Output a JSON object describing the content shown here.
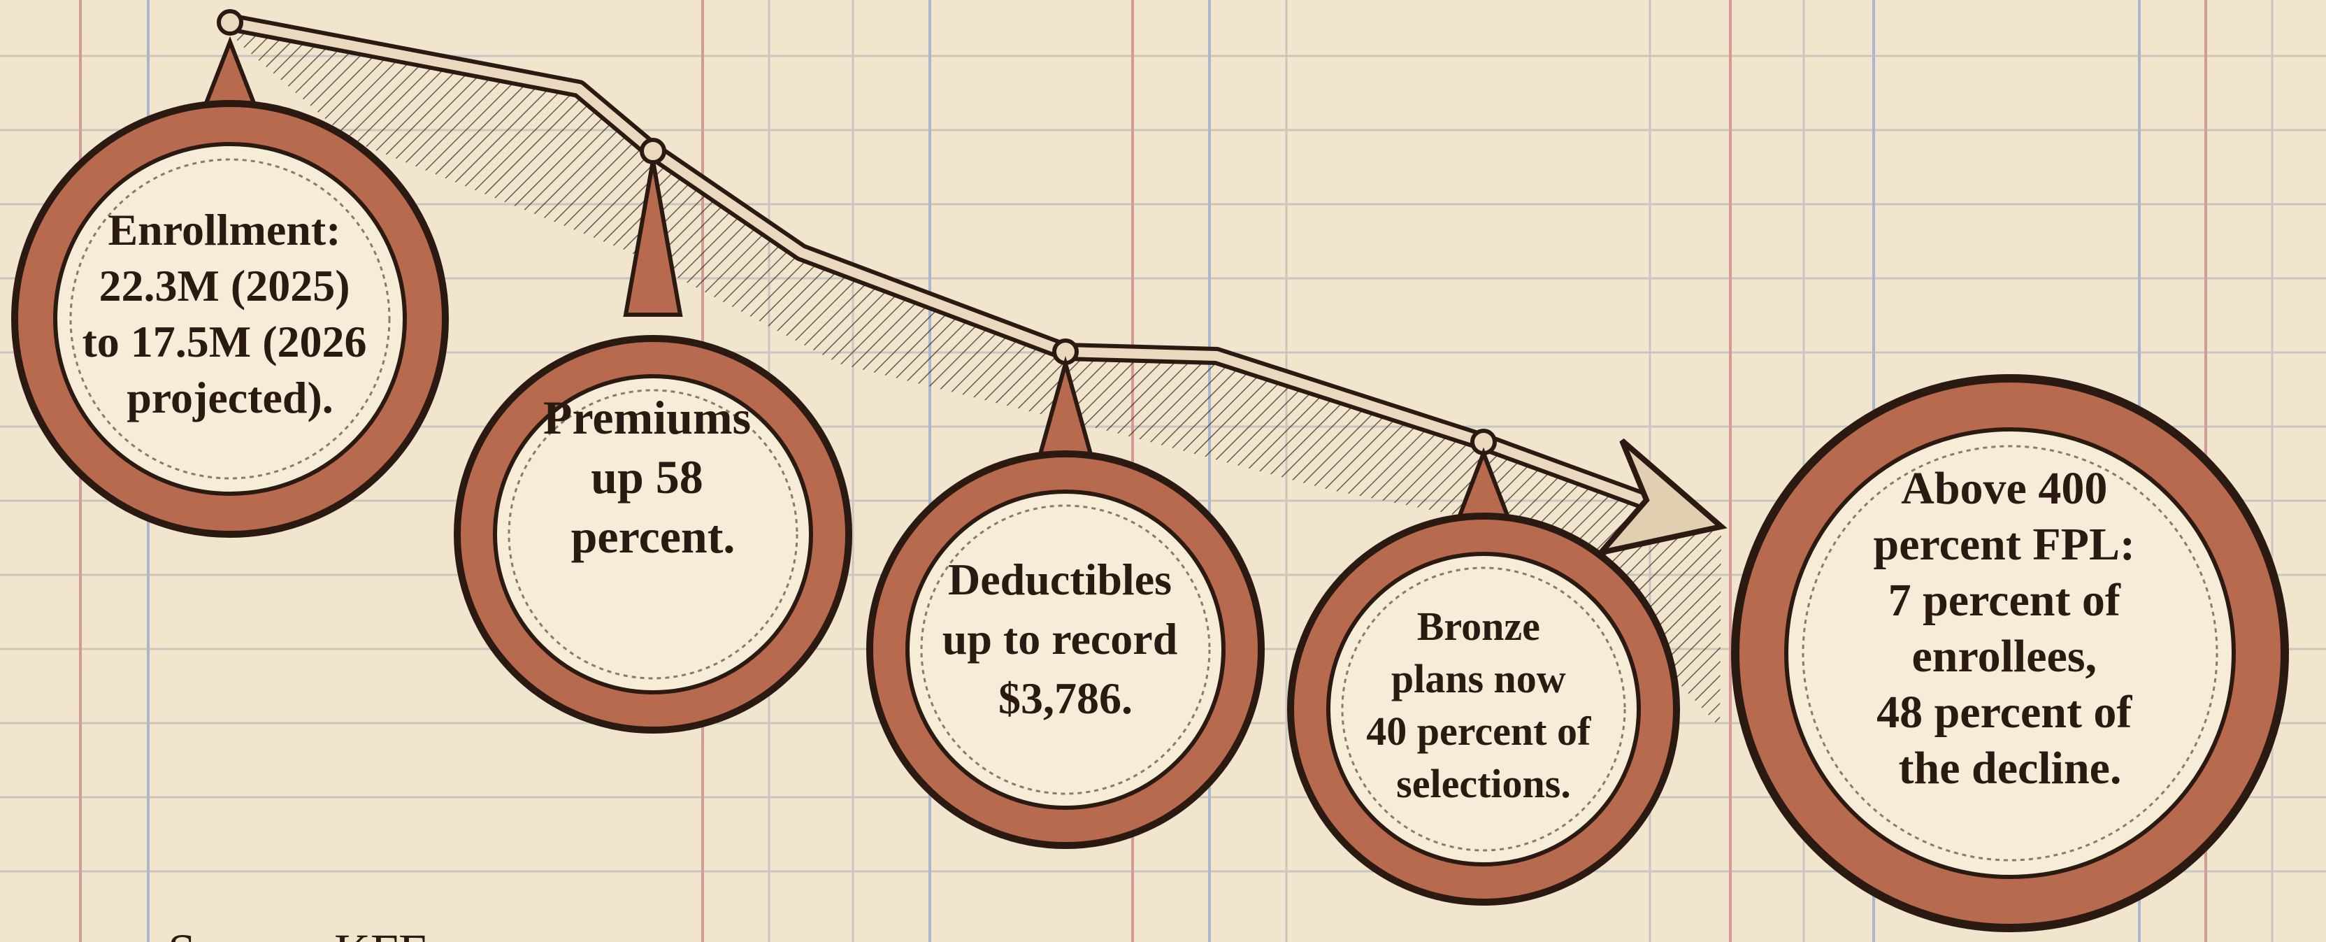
{
  "nodes": [
    {
      "lines": [
        "Enrollment:",
        "22.3M (2025)",
        "to 17.5M (2026",
        "projected)."
      ]
    },
    {
      "lines": [
        "Premiums",
        "up 58",
        "percent."
      ]
    },
    {
      "lines": [
        "Deductibles",
        "up to record",
        "$3,786."
      ]
    },
    {
      "lines": [
        "Bronze",
        "plans now",
        "40 percent of",
        "selections."
      ]
    },
    {
      "lines": [
        "Above 400",
        "percent FPL:",
        "7 percent of",
        "enrollees,",
        "48 percent of",
        "the decline."
      ]
    }
  ],
  "footer": {
    "source": "Source: KFF"
  }
}
